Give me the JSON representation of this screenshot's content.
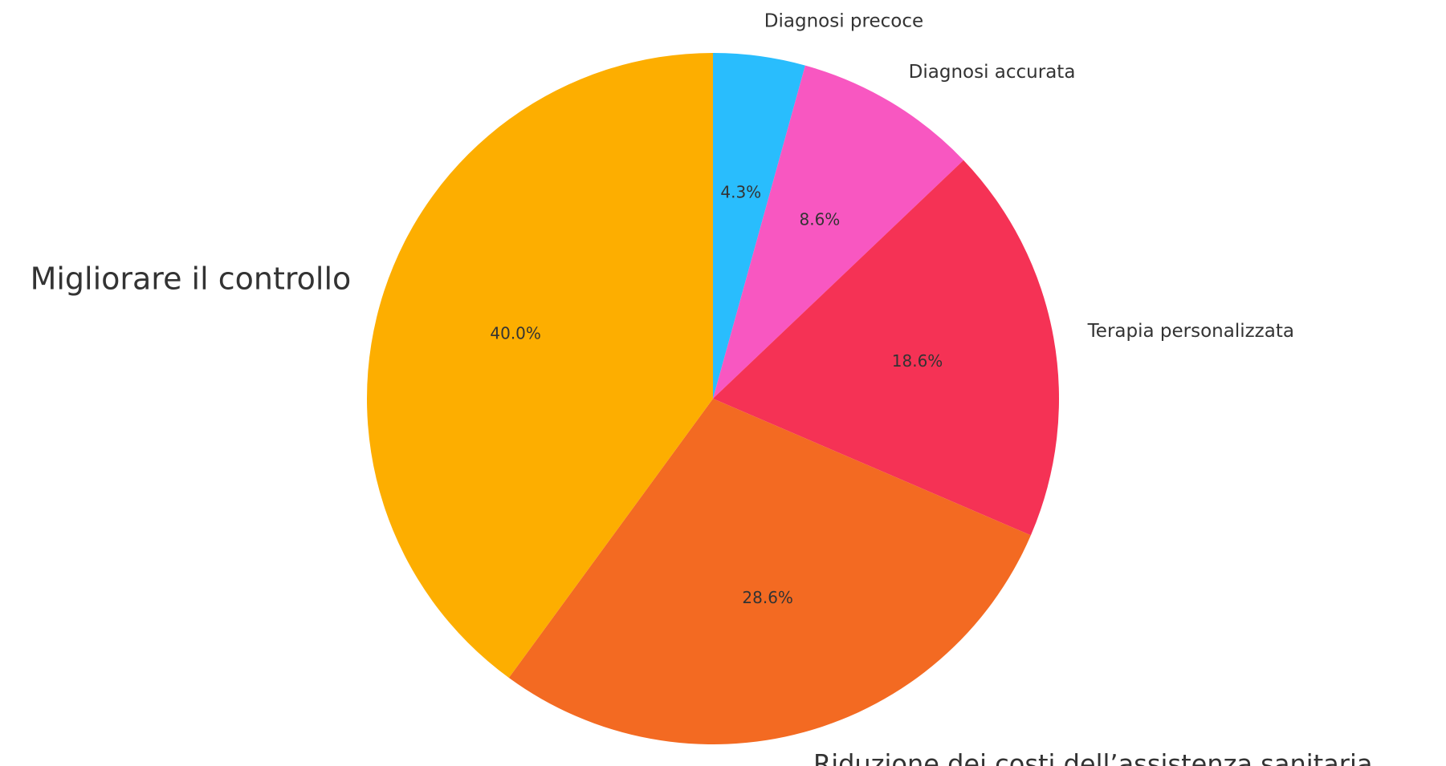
{
  "chart_data": {
    "type": "pie",
    "categories": [
      "Diagnosi precoce",
      "Diagnosi accurata",
      "Terapia personalizzata",
      "Riduzione dei costi dell’assistenza sanitaria",
      "Migliorare il controllo"
    ],
    "values": [
      4.3,
      8.6,
      18.6,
      28.6,
      40.0
    ],
    "value_labels": [
      "4.3%",
      "8.6%",
      "18.6%",
      "28.6%",
      "40.0%"
    ],
    "colors": [
      "#29bdfd",
      "#f857c1",
      "#f53255",
      "#f36a22",
      "#fdae00"
    ]
  }
}
